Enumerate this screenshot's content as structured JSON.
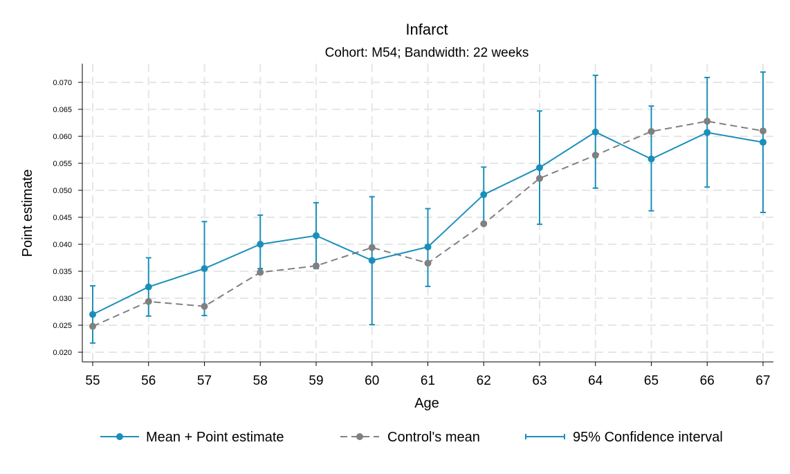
{
  "chart_data": {
    "type": "line",
    "title": "Infarct",
    "subtitle": "Cohort: M54; Bandwidth: 22 weeks",
    "xlabel": "Age",
    "ylabel": "Point estimate",
    "x": [
      55,
      56,
      57,
      58,
      59,
      60,
      61,
      62,
      63,
      64,
      65,
      66,
      67
    ],
    "xlim": [
      55,
      67
    ],
    "ylim": [
      0.02,
      0.07
    ],
    "yticks": [
      "0.020",
      "0.025",
      "0.030",
      "0.035",
      "0.040",
      "0.045",
      "0.050",
      "0.055",
      "0.060",
      "0.065",
      "0.070"
    ],
    "grid": true,
    "legend_position": "bottom",
    "series": [
      {
        "name": "Mean + Point estimate",
        "color": "#1a8fba",
        "style": "solid",
        "values": [
          0.027,
          0.0321,
          0.0355,
          0.04,
          0.0416,
          0.037,
          0.0395,
          0.0492,
          0.0542,
          0.0608,
          0.0558,
          0.0607,
          0.0589
        ]
      },
      {
        "name": "Control's mean",
        "color": "#808080",
        "style": "dashed",
        "values": [
          0.0248,
          0.0294,
          0.0285,
          0.0348,
          0.036,
          0.0394,
          0.0365,
          0.0438,
          0.0522,
          0.0565,
          0.0609,
          0.0628,
          0.061
        ]
      }
    ],
    "error_bars": {
      "name": "95% Confidence interval",
      "color": "#1a8fba",
      "lower": [
        0.0217,
        0.0267,
        0.0268,
        0.0355,
        0.0355,
        0.0251,
        0.0322,
        0.0439,
        0.0437,
        0.0504,
        0.0462,
        0.0506,
        0.0459
      ],
      "upper": [
        0.0323,
        0.0375,
        0.0442,
        0.0454,
        0.0477,
        0.0488,
        0.0466,
        0.0543,
        0.0647,
        0.0713,
        0.0656,
        0.0709,
        0.0719
      ]
    }
  }
}
